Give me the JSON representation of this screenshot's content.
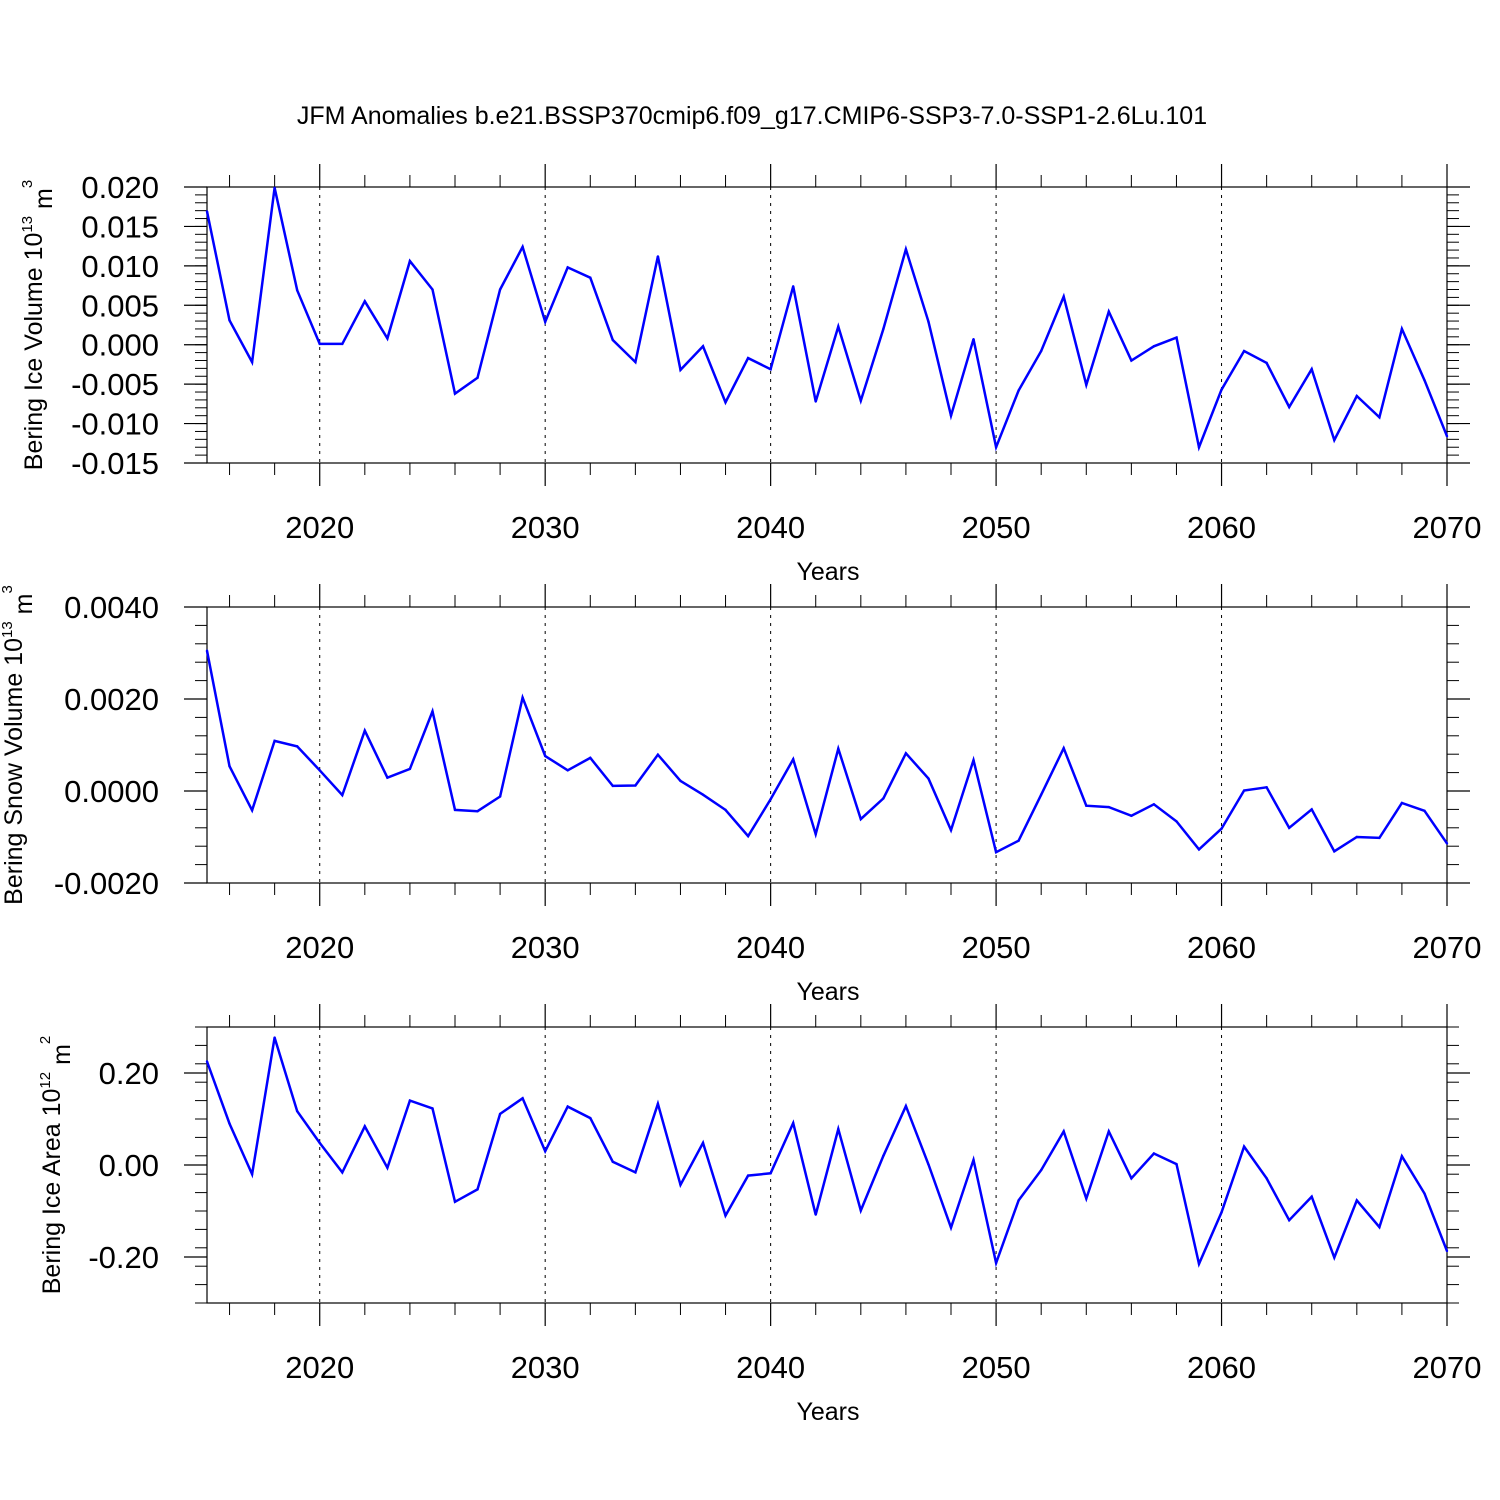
{
  "title": "JFM Anomalies b.e21.BSSP370cmip6.f09_g17.CMIP6-SSP3-7.0-SSP1-2.6Lu.101",
  "line_color": "#0000ff",
  "chart_data": [
    {
      "type": "line",
      "xlabel": "Years",
      "ylabel_main": "Bering Ice Volume 10",
      "ylabel_exp": "13",
      "ylabel_unit": " m",
      "ylabel_unit_exp": "3",
      "xlim": [
        2015,
        2070
      ],
      "ylim": [
        -0.015,
        0.02
      ],
      "xticks": [
        "2020",
        "2030",
        "2040",
        "2050",
        "2060",
        "2070"
      ],
      "yticks": [
        "0.020",
        "0.015",
        "0.010",
        "0.005",
        "0.000",
        "-0.005",
        "-0.010",
        "-0.015"
      ],
      "x": [
        2015,
        2016,
        2017,
        2018,
        2019,
        2020,
        2021,
        2022,
        2023,
        2024,
        2025,
        2026,
        2027,
        2028,
        2029,
        2030,
        2031,
        2032,
        2033,
        2034,
        2035,
        2036,
        2037,
        2038,
        2039,
        2040,
        2041,
        2042,
        2043,
        2044,
        2045,
        2046,
        2047,
        2048,
        2049,
        2050,
        2051,
        2052,
        2053,
        2054,
        2055,
        2056,
        2057,
        2058,
        2059,
        2060,
        2061,
        2062,
        2063,
        2064,
        2065,
        2066,
        2067,
        2068,
        2069,
        2070
      ],
      "y": [
        0.0169,
        0.0031,
        -0.0022,
        0.0199,
        0.0069,
        0.0001,
        0.0001,
        0.0055,
        0.0008,
        0.0106,
        0.007,
        -0.0062,
        -0.0042,
        0.007,
        0.0124,
        0.0029,
        0.0098,
        0.0085,
        0.0006,
        -0.0022,
        0.0112,
        -0.0032,
        -0.0002,
        -0.0073,
        -0.0017,
        -0.0031,
        0.0074,
        -0.0072,
        0.0023,
        -0.0071,
        0.002,
        0.0121,
        0.0029,
        -0.009,
        0.0007,
        -0.013,
        -0.0058,
        -0.0008,
        0.0061,
        -0.0051,
        0.0042,
        -0.002,
        -0.0002,
        0.0009,
        -0.013,
        -0.0057,
        -0.0008,
        -0.0023,
        -0.0079,
        -0.0031,
        -0.0121,
        -0.0065,
        -0.0092,
        0.002,
        -0.0045,
        -0.0116
      ]
    },
    {
      "type": "line",
      "xlabel": "Years",
      "ylabel_main": "Bering Snow Volume 10",
      "ylabel_exp": "13",
      "ylabel_unit": " m",
      "ylabel_unit_exp": "3",
      "xlim": [
        2015,
        2070
      ],
      "ylim": [
        -0.002,
        0.004
      ],
      "xticks": [
        "2020",
        "2030",
        "2040",
        "2050",
        "2060",
        "2070"
      ],
      "yticks": [
        "0.0040",
        "0.0020",
        "0.0000",
        "-0.0020"
      ],
      "x": [
        2015,
        2016,
        2017,
        2018,
        2019,
        2020,
        2021,
        2022,
        2023,
        2024,
        2025,
        2026,
        2027,
        2028,
        2029,
        2030,
        2031,
        2032,
        2033,
        2034,
        2035,
        2036,
        2037,
        2038,
        2039,
        2040,
        2041,
        2042,
        2043,
        2044,
        2045,
        2046,
        2047,
        2048,
        2049,
        2050,
        2051,
        2052,
        2053,
        2054,
        2055,
        2056,
        2057,
        2058,
        2059,
        2060,
        2061,
        2062,
        2063,
        2064,
        2065,
        2066,
        2067,
        2068,
        2069,
        2070
      ],
      "y": [
        0.00305,
        0.00054,
        -0.00042,
        0.00109,
        0.00097,
        0.00045,
        -9e-05,
        0.00131,
        0.00029,
        0.00048,
        0.00173,
        -0.00041,
        -0.00044,
        -0.00012,
        0.00203,
        0.00076,
        0.00045,
        0.00072,
        0.00011,
        0.00012,
        0.00079,
        0.00022,
        -8e-05,
        -0.00041,
        -0.00098,
        -0.00018,
        0.00069,
        -0.00094,
        0.00092,
        -0.00061,
        -0.00016,
        0.00082,
        0.00027,
        -0.00085,
        0.00067,
        -0.00133,
        -0.00108,
        -8e-05,
        0.00093,
        -0.00032,
        -0.00035,
        -0.00054,
        -0.00029,
        -0.00066,
        -0.00127,
        -0.00082,
        1e-05,
        8e-05,
        -0.0008,
        -0.0004,
        -0.00131,
        -0.001,
        -0.00102,
        -0.00026,
        -0.00043,
        -0.00114
      ]
    },
    {
      "type": "line",
      "xlabel": "Years",
      "ylabel_main": "Bering Ice Area 10",
      "ylabel_exp": "12",
      "ylabel_unit": " m",
      "ylabel_unit_exp": "2",
      "xlim": [
        2015,
        2070
      ],
      "ylim": [
        -0.3,
        0.3
      ],
      "xticks": [
        "2020",
        "2030",
        "2040",
        "2050",
        "2060",
        "2070"
      ],
      "yticks": [
        "0.20",
        "0.00",
        "-0.20"
      ],
      "x": [
        2015,
        2016,
        2017,
        2018,
        2019,
        2020,
        2021,
        2022,
        2023,
        2024,
        2025,
        2026,
        2027,
        2028,
        2029,
        2030,
        2031,
        2032,
        2033,
        2034,
        2035,
        2036,
        2037,
        2038,
        2039,
        2040,
        2041,
        2042,
        2043,
        2044,
        2045,
        2046,
        2047,
        2048,
        2049,
        2050,
        2051,
        2052,
        2053,
        2054,
        2055,
        2056,
        2057,
        2058,
        2059,
        2060,
        2061,
        2062,
        2063,
        2064,
        2065,
        2066,
        2067,
        2068,
        2069,
        2070
      ],
      "y": [
        0.225,
        0.09,
        -0.02,
        0.277,
        0.117,
        0.048,
        -0.016,
        0.084,
        -0.006,
        0.14,
        0.123,
        -0.08,
        -0.053,
        0.111,
        0.145,
        0.03,
        0.127,
        0.102,
        0.007,
        -0.016,
        0.133,
        -0.043,
        0.048,
        -0.11,
        -0.023,
        -0.018,
        0.091,
        -0.108,
        0.078,
        -0.099,
        0.02,
        0.128,
        0.001,
        -0.136,
        0.011,
        -0.213,
        -0.077,
        -0.011,
        0.073,
        -0.073,
        0.073,
        -0.029,
        0.025,
        0.002,
        -0.215,
        -0.103,
        0.04,
        -0.029,
        -0.12,
        -0.069,
        -0.201,
        -0.077,
        -0.135,
        0.019,
        -0.062,
        -0.187
      ]
    }
  ]
}
